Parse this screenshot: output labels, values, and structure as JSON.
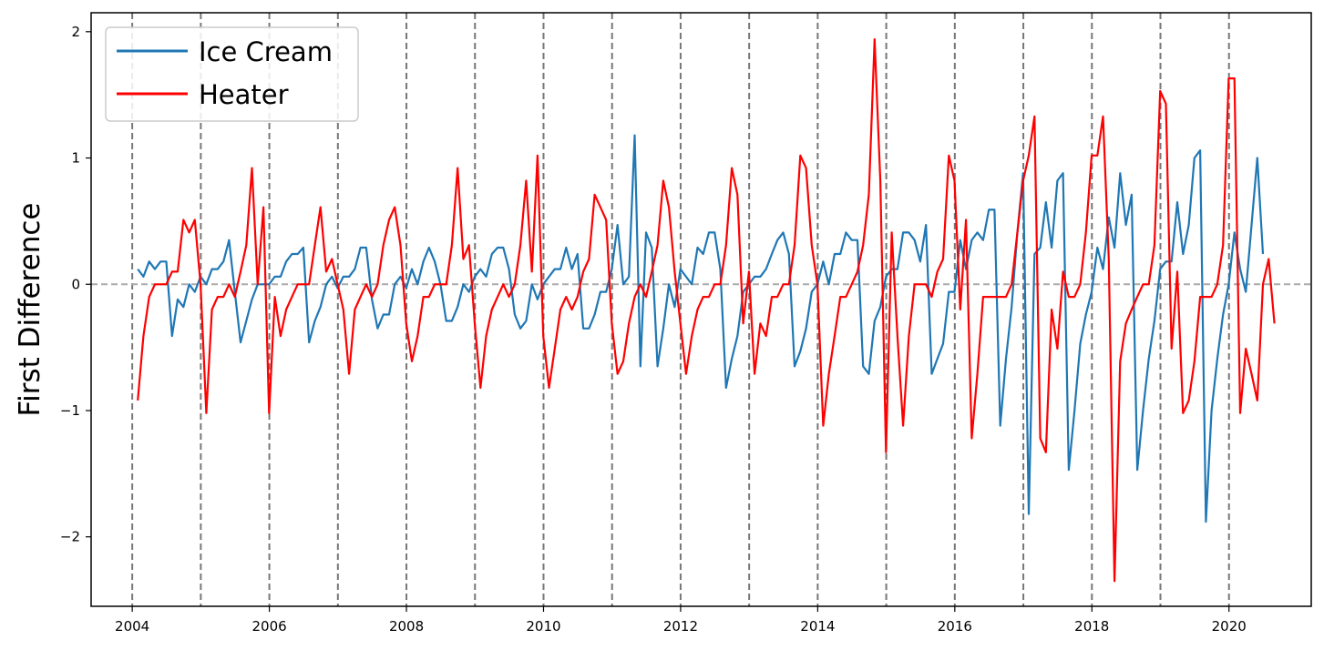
{
  "chart_data": {
    "type": "line",
    "title": "",
    "xlabel": "",
    "ylabel": "First Difference",
    "xlim": [
      2003.4,
      2021.2
    ],
    "ylim": [
      -2.55,
      2.15
    ],
    "x_ticks": [
      2004,
      2006,
      2008,
      2010,
      2012,
      2014,
      2016,
      2018,
      2020
    ],
    "x_tick_labels": [
      "2004",
      "2006",
      "2008",
      "2010",
      "2012",
      "2014",
      "2016",
      "2018",
      "2020"
    ],
    "y_ticks": [
      2,
      1,
      0,
      -1,
      -2
    ],
    "y_tick_labels": [
      "2",
      "1",
      "0",
      "−1",
      "−2"
    ],
    "vertical_dashed_lines": [
      2004,
      2005,
      2006,
      2007,
      2008,
      2009,
      2010,
      2011,
      2012,
      2013,
      2014,
      2015,
      2016,
      2017,
      2018,
      2019,
      2020
    ],
    "horizontal_reference_line": 0,
    "legend_location": "upper left",
    "series": [
      {
        "name": "Ice Cream",
        "color": "#1f77b4",
        "start_year": 2004.08,
        "step": 0.08333,
        "values": [
          0.12,
          0.06,
          0.18,
          0.12,
          0.18,
          0.18,
          -0.41,
          -0.12,
          -0.18,
          0,
          -0.06,
          0.06,
          0,
          0.12,
          0.12,
          0.18,
          0.35,
          -0.06,
          -0.46,
          -0.29,
          -0.12,
          0,
          0,
          0,
          0.06,
          0.06,
          0.18,
          0.24,
          0.24,
          0.29,
          -0.46,
          -0.29,
          -0.18,
          0,
          0.06,
          -0.03,
          0.06,
          0.06,
          0.12,
          0.29,
          0.29,
          -0.12,
          -0.35,
          -0.24,
          -0.24,
          0,
          0.06,
          -0.03,
          0.12,
          0,
          0.18,
          0.29,
          0.18,
          0,
          -0.29,
          -0.29,
          -0.18,
          0,
          -0.06,
          0.06,
          0.12,
          0.06,
          0.24,
          0.29,
          0.29,
          0.12,
          -0.24,
          -0.35,
          -0.29,
          0,
          -0.12,
          0,
          0.06,
          0.12,
          0.12,
          0.29,
          0.12,
          0.24,
          -0.35,
          -0.35,
          -0.24,
          -0.06,
          -0.06,
          0.12,
          0.47,
          0,
          0.06,
          1.18,
          -0.65,
          0.41,
          0.29,
          -0.65,
          -0.35,
          0,
          -0.18,
          0.12,
          0.06,
          0,
          0.29,
          0.24,
          0.41,
          0.41,
          0.12,
          -0.82,
          -0.59,
          -0.41,
          -0.06,
          0,
          0.06,
          0.06,
          0.12,
          0.24,
          0.35,
          0.41,
          0.24,
          -0.65,
          -0.53,
          -0.35,
          -0.06,
          0,
          0.18,
          0,
          0.24,
          0.24,
          0.41,
          0.35,
          0.35,
          -0.65,
          -0.71,
          -0.29,
          -0.18,
          0.06,
          0.12,
          0.12,
          0.41,
          0.41,
          0.35,
          0.18,
          0.47,
          -0.71,
          -0.59,
          -0.47,
          -0.06,
          -0.06,
          0.35,
          0.12,
          0.35,
          0.41,
          0.35,
          0.59,
          0.59,
          -1.12,
          -0.59,
          -0.18,
          0.41,
          0.88,
          -1.82,
          0.24,
          0.29,
          0.65,
          0.29,
          0.82,
          0.88,
          -1.47,
          -1,
          -0.47,
          -0.24,
          -0.06,
          0.29,
          0.12,
          0.53,
          0.29,
          0.88,
          0.47,
          0.71,
          -1.47,
          -1,
          -0.59,
          -0.29,
          0.12,
          0.18,
          0.18,
          0.65,
          0.24,
          0.47,
          1,
          1.06,
          -1.88,
          -1,
          -0.59,
          -0.24,
          0,
          0.41,
          0.12,
          -0.06,
          0.47,
          1,
          0.24
        ]
      },
      {
        "name": "Heater",
        "color": "#ff0000",
        "start_year": 2004.08,
        "step": 0.08333,
        "values": [
          -0.92,
          -0.41,
          -0.1,
          0,
          0,
          0,
          0.1,
          0.1,
          0.51,
          0.41,
          0.51,
          0,
          -1.02,
          -0.2,
          -0.1,
          -0.1,
          0,
          -0.1,
          0.1,
          0.31,
          0.92,
          0,
          0.61,
          -1.02,
          -0.1,
          -0.41,
          -0.2,
          -0.1,
          0,
          0,
          0,
          0.31,
          0.61,
          0.1,
          0.2,
          0,
          -0.2,
          -0.71,
          -0.2,
          -0.1,
          0,
          -0.1,
          0,
          0.31,
          0.51,
          0.61,
          0.31,
          -0.31,
          -0.61,
          -0.41,
          -0.1,
          -0.1,
          0,
          0,
          0,
          0.31,
          0.92,
          0.2,
          0.31,
          -0.31,
          -0.82,
          -0.41,
          -0.2,
          -0.1,
          0,
          -0.1,
          0,
          0.31,
          0.82,
          0.1,
          1.02,
          -0.41,
          -0.82,
          -0.51,
          -0.2,
          -0.1,
          -0.2,
          -0.1,
          0.1,
          0.2,
          0.71,
          0.61,
          0.51,
          -0.31,
          -0.71,
          -0.61,
          -0.31,
          -0.1,
          0,
          -0.1,
          0.1,
          0.31,
          0.82,
          0.61,
          0.1,
          -0.31,
          -0.71,
          -0.41,
          -0.2,
          -0.1,
          -0.1,
          0,
          0,
          0.31,
          0.92,
          0.71,
          -0.31,
          0.1,
          -0.71,
          -0.31,
          -0.41,
          -0.1,
          -0.1,
          0,
          0,
          0.31,
          1.02,
          0.92,
          0.31,
          0,
          -1.12,
          -0.71,
          -0.41,
          -0.1,
          -0.1,
          0,
          0.1,
          0.31,
          0.71,
          1.94,
          0.82,
          -1.33,
          0.41,
          -0.41,
          -1.12,
          -0.41,
          0,
          0,
          0,
          -0.1,
          0.1,
          0.2,
          1.02,
          0.82,
          -0.2,
          0.51,
          -1.22,
          -0.71,
          -0.1,
          -0.1,
          -0.1,
          -0.1,
          -0.1,
          0,
          0.41,
          0.82,
          1.02,
          1.33,
          -1.22,
          -1.33,
          -0.2,
          -0.51,
          0.1,
          -0.1,
          -0.1,
          0,
          0.41,
          1.02,
          1.02,
          1.33,
          0.2,
          -2.35,
          -0.61,
          -0.31,
          -0.2,
          -0.1,
          0,
          0,
          0.31,
          1.53,
          1.43,
          -0.51,
          0.1,
          -1.02,
          -0.92,
          -0.61,
          -0.1,
          -0.1,
          -0.1,
          0,
          0.31,
          1.63,
          1.63,
          -1.02,
          -0.51,
          -0.71,
          -0.92,
          0,
          0.2,
          -0.31
        ]
      }
    ]
  }
}
